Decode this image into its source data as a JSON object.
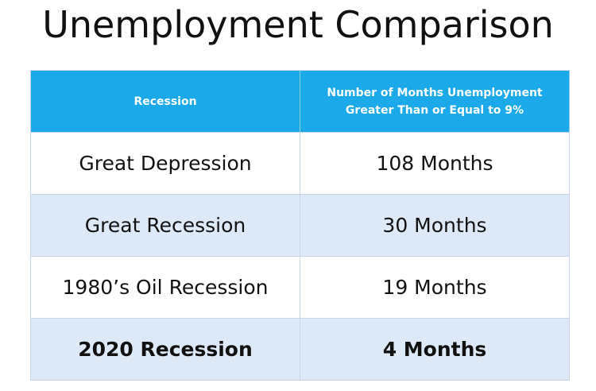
{
  "title": "Unemployment Comparison",
  "table": {
    "header": [
      "Recession",
      "Number of Months Unemployment Greater Than or Equal to 9%"
    ],
    "rows": [
      [
        "Great Depression",
        "108 Months"
      ],
      [
        "Great Recession",
        "30 Months"
      ],
      [
        "1980’s Oil Recession",
        "19 Months"
      ],
      [
        "2020 Recession",
        "4 Months"
      ]
    ]
  }
}
